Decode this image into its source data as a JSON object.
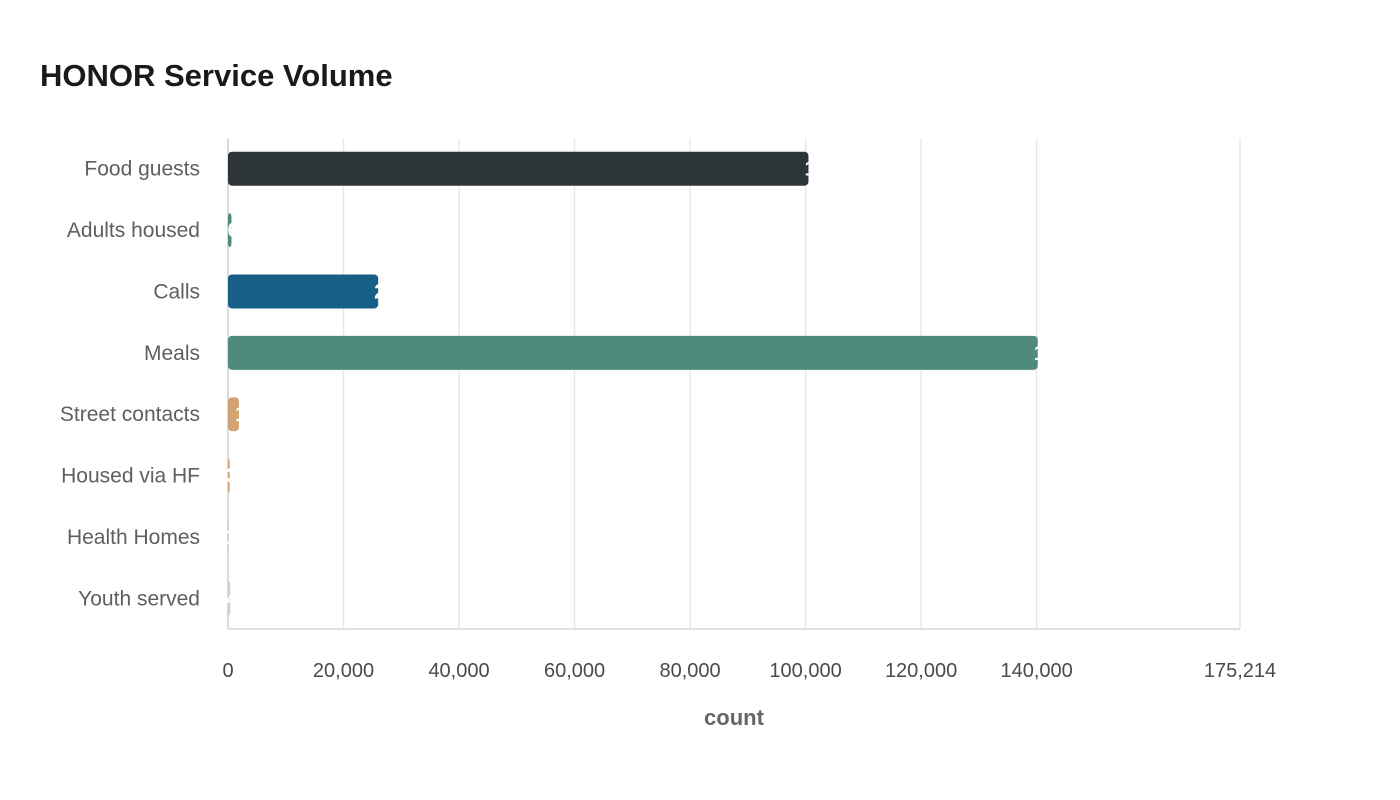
{
  "chart_data": {
    "type": "bar",
    "orientation": "horizontal",
    "title": "HONOR Service Volume",
    "xlabel": "count",
    "ylabel": "",
    "categories": [
      "Food guests",
      "Adults housed",
      "Calls",
      "Meals",
      "Street contacts",
      "Housed via HF",
      "Health Homes",
      "Youth served"
    ],
    "values": [
      100500,
      600,
      26000,
      140200,
      1900,
      300,
      150,
      400
    ],
    "colors": [
      "#2d3538",
      "#4e8b7b",
      "#165f86",
      "#4e8b7b",
      "#d4a373",
      "#d4a373",
      "#cfcfcf",
      "#cfcfcf"
    ],
    "xlim": [
      0,
      175214
    ],
    "xticks": [
      0,
      20000,
      40000,
      60000,
      80000,
      100000,
      120000,
      140000,
      175214
    ],
    "xtick_labels": [
      "0",
      "20,000",
      "40,000",
      "60,000",
      "80,000",
      "100,000",
      "120,000",
      "140,000",
      "175,214"
    ],
    "grid": true,
    "legend": "none"
  }
}
